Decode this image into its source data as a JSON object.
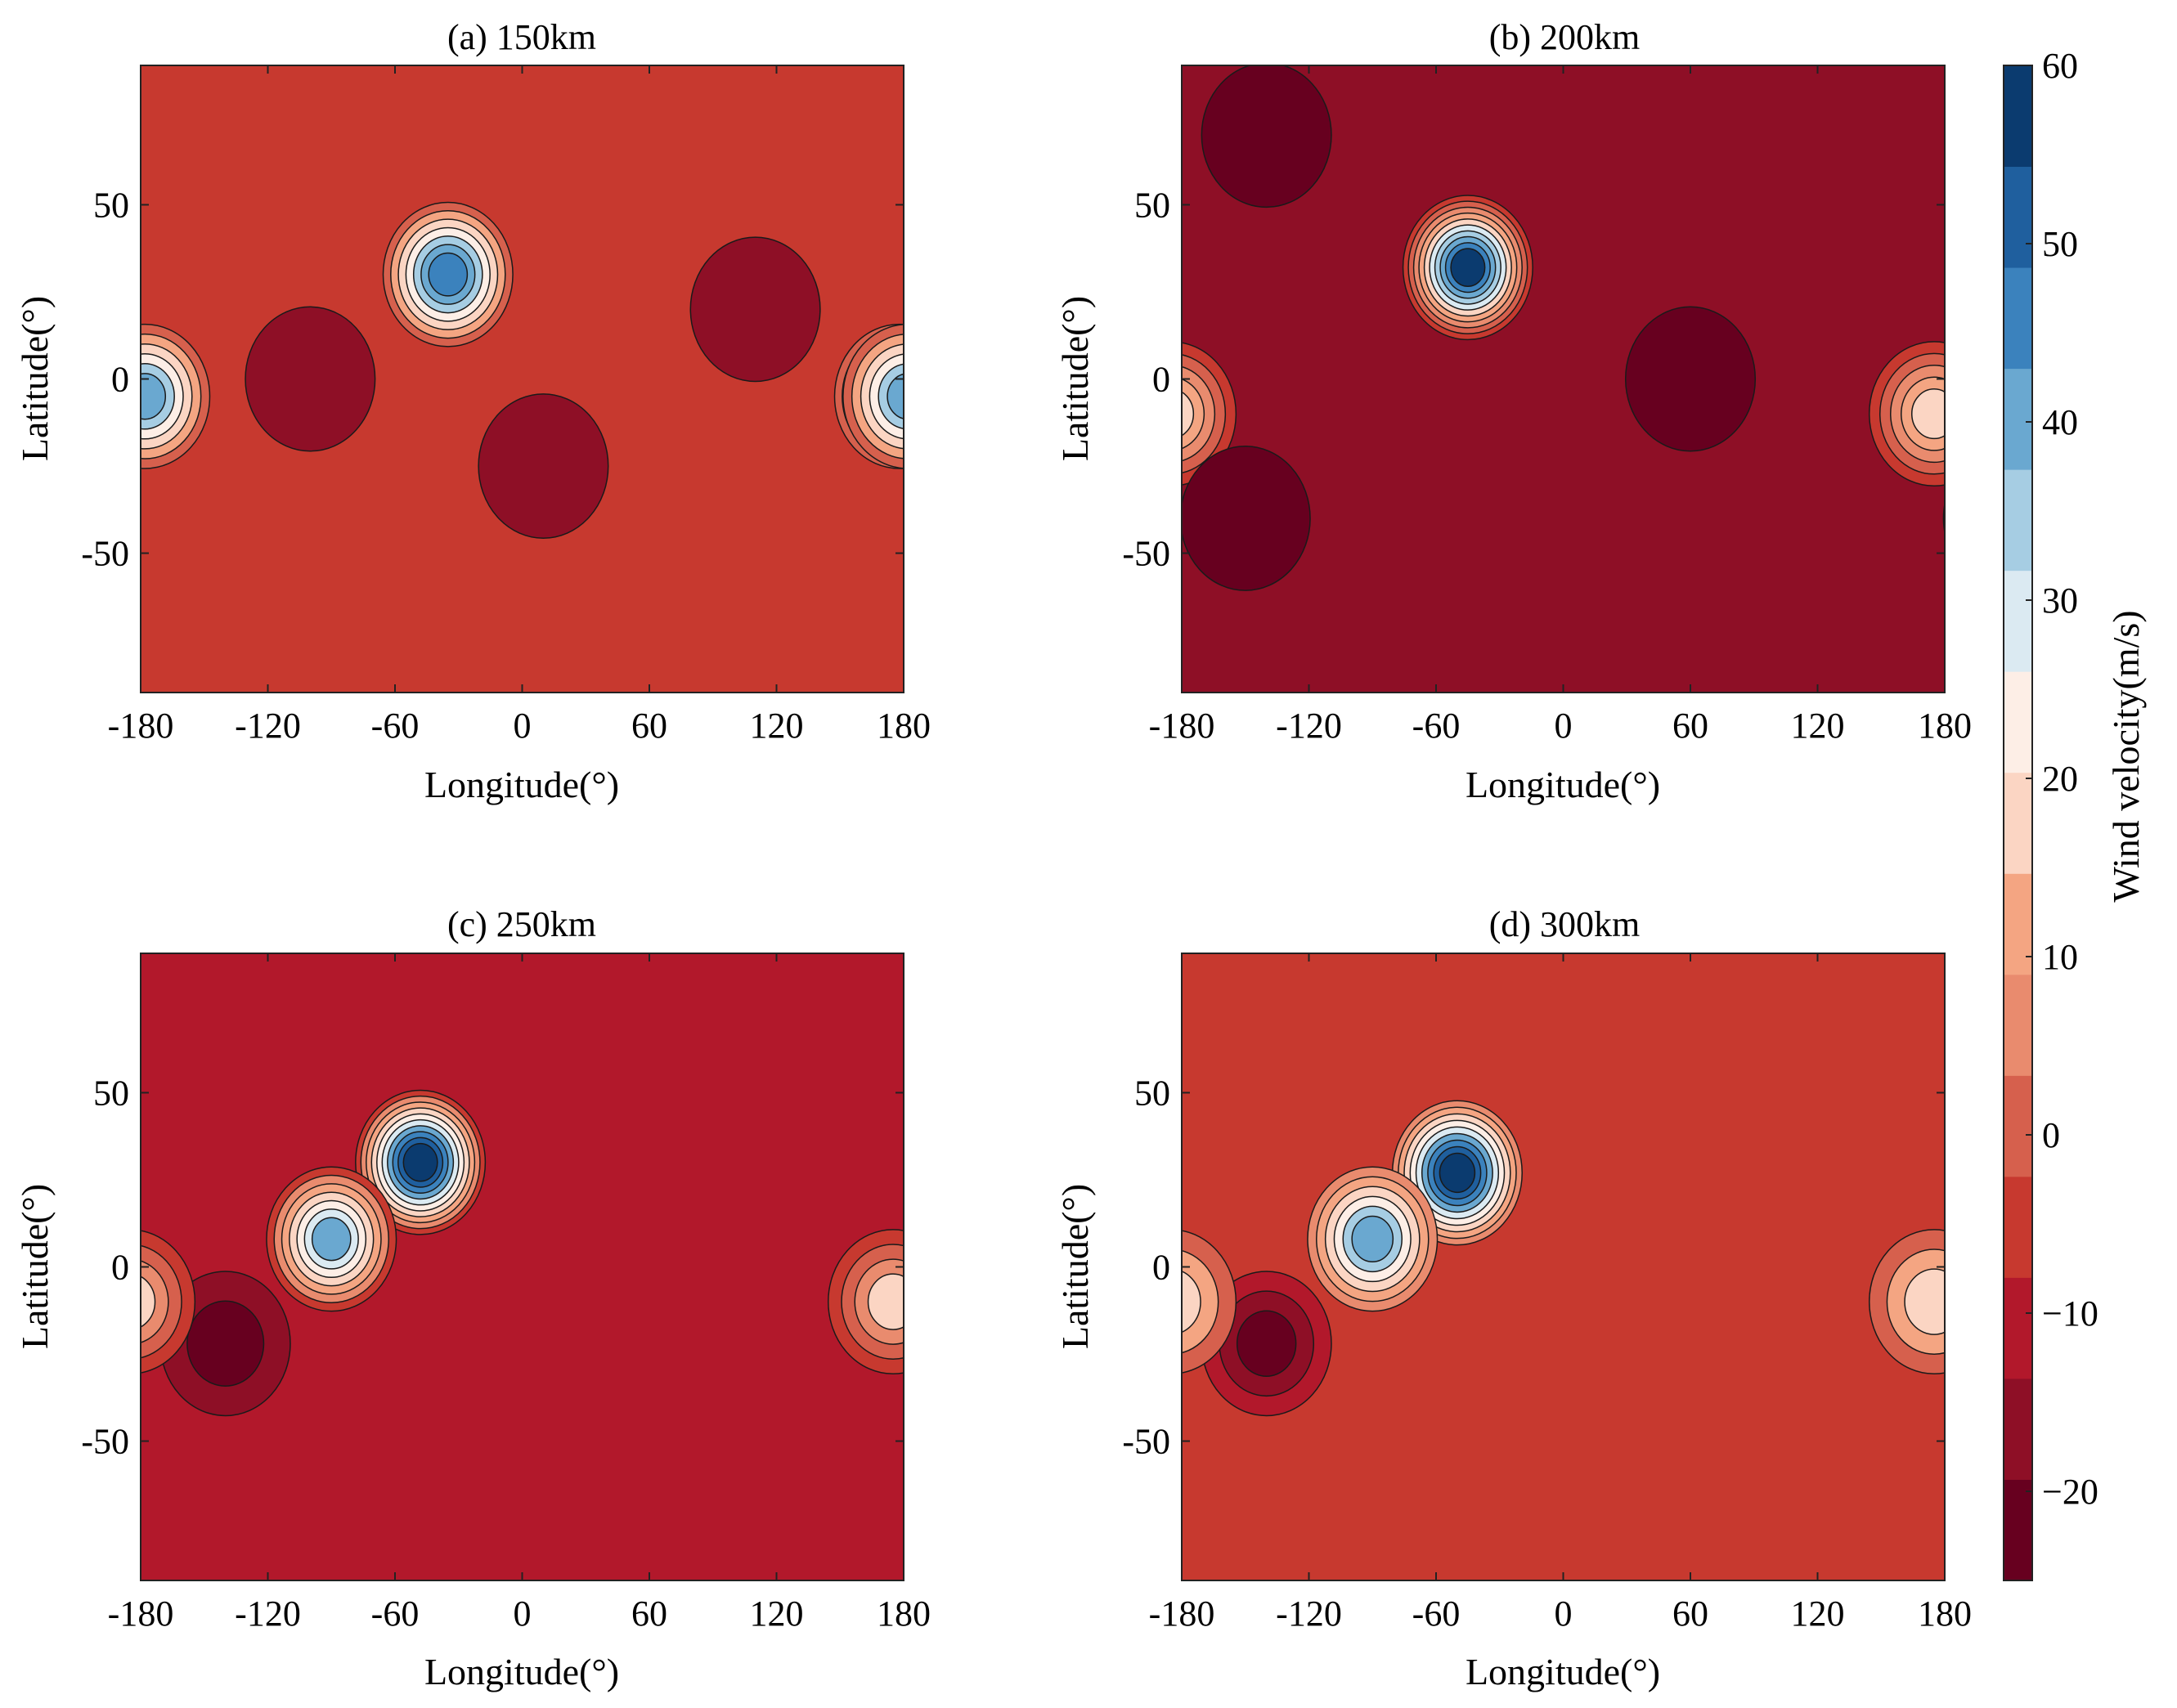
{
  "chart_data": {
    "type": "contour",
    "figure_description_colormap": "diverging red-blue",
    "colorbar": {
      "label": "Wind velocity(m/s)",
      "ticks": [
        60,
        50,
        40,
        30,
        20,
        10,
        0,
        -10,
        -20
      ],
      "range": [
        -25,
        60
      ],
      "colors": [
        "#67001f",
        "#8e0f26",
        "#b2182b",
        "#c7392f",
        "#d6604d",
        "#e98b6e",
        "#f4a582",
        "#fbd5c3",
        "#fdeee6",
        "#dbeaf2",
        "#a6cde3",
        "#6aa8d0",
        "#3b82bd",
        "#1f5f9e",
        "#0b3b6f"
      ]
    },
    "panels": [
      {
        "id": "a",
        "title": "(a) 150km",
        "xlabel": "Longitude(°)",
        "ylabel": "Latitude(°)",
        "xlim": [
          -180,
          180
        ],
        "ylim": [
          -90,
          90
        ],
        "xticks": [
          -180,
          -120,
          -60,
          0,
          60,
          120,
          180
        ],
        "yticks": [
          50,
          0,
          -50
        ],
        "background_velocity": -5,
        "features": [
          {
            "lon": -35,
            "lat": 30,
            "peak": 47,
            "note": "positive jet core"
          },
          {
            "lon": 178,
            "lat": -5,
            "peak": 45,
            "note": "positive core at dateline"
          },
          {
            "lon": -178,
            "lat": -5,
            "peak": 40,
            "note": "positive core at dateline"
          },
          {
            "lon": 110,
            "lat": 20,
            "peak": -15,
            "note": "negative region"
          },
          {
            "lon": -100,
            "lat": 0,
            "peak": -15,
            "note": "negative band"
          },
          {
            "lon": 10,
            "lat": -25,
            "peak": -15,
            "note": "negative region"
          }
        ]
      },
      {
        "id": "b",
        "title": "(b) 200km",
        "xlabel": "Longitude(°)",
        "ylabel": "Latitude(°)",
        "xlim": [
          -180,
          180
        ],
        "ylim": [
          -90,
          90
        ],
        "xticks": [
          -180,
          -120,
          -60,
          0,
          60,
          120,
          180
        ],
        "yticks": [
          50,
          0,
          -50
        ],
        "background_velocity": -15,
        "features": [
          {
            "lon": -45,
            "lat": 32,
            "peak": 55,
            "note": "positive jet core"
          },
          {
            "lon": 175,
            "lat": -10,
            "peak": 20,
            "note": "positive core at dateline"
          },
          {
            "lon": 60,
            "lat": 0,
            "peak": -24,
            "note": "negative region"
          },
          {
            "lon": -150,
            "lat": -40,
            "peak": -24,
            "note": "negative region"
          },
          {
            "lon": -140,
            "lat": 70,
            "peak": -24,
            "note": "negative region"
          }
        ]
      },
      {
        "id": "c",
        "title": "(c) 250km",
        "xlabel": "Longitude(°)",
        "ylabel": "Latitude(°)",
        "xlim": [
          -180,
          180
        ],
        "ylim": [
          -90,
          90
        ],
        "xticks": [
          -180,
          -120,
          -60,
          0,
          60,
          120,
          180
        ],
        "yticks": [
          50,
          0,
          -50
        ],
        "background_velocity": -10,
        "features": [
          {
            "lon": -48,
            "lat": 30,
            "peak": 58,
            "note": "positive jet core"
          },
          {
            "lon": -90,
            "lat": 8,
            "peak": 38,
            "note": "secondary positive core"
          },
          {
            "lon": -140,
            "lat": -22,
            "peak": -22,
            "note": "negative core"
          },
          {
            "lon": 175,
            "lat": -10,
            "peak": 15,
            "note": "positive region at dateline"
          }
        ]
      },
      {
        "id": "d",
        "title": "(d) 300km",
        "xlabel": "Longitude(°)",
        "ylabel": "Latitude(°)",
        "xlim": [
          -180,
          180
        ],
        "ylim": [
          -90,
          90
        ],
        "xticks": [
          -180,
          -120,
          -60,
          0,
          60,
          120,
          180
        ],
        "yticks": [
          50,
          0,
          -50
        ],
        "background_velocity": -3,
        "features": [
          {
            "lon": -50,
            "lat": 27,
            "peak": 58,
            "note": "positive jet core"
          },
          {
            "lon": -90,
            "lat": 8,
            "peak": 40,
            "note": "secondary positive core"
          },
          {
            "lon": -140,
            "lat": -22,
            "peak": -22,
            "note": "negative core"
          },
          {
            "lon": 175,
            "lat": -10,
            "peak": 15,
            "note": "positive region at dateline"
          }
        ]
      }
    ]
  }
}
